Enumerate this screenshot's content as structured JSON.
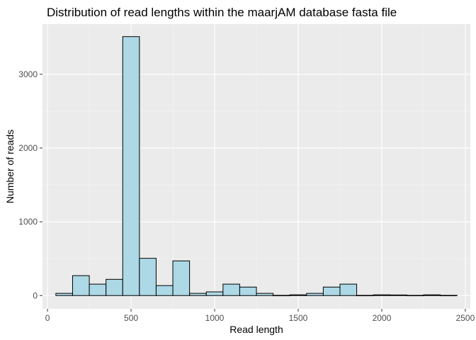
{
  "chart_data": {
    "type": "bar",
    "title": "Distribution of read lengths within the maarjAM database fasta file",
    "xlabel": "Read length",
    "ylabel": "Number of reads",
    "bin_width": 100,
    "bin_start": 50,
    "x": [
      100,
      200,
      300,
      400,
      500,
      600,
      700,
      800,
      900,
      1000,
      1100,
      1200,
      1300,
      1400,
      1500,
      1600,
      1700,
      1800,
      1900,
      2000,
      2100,
      2200,
      2300,
      2400
    ],
    "values": [
      30,
      270,
      155,
      220,
      3510,
      505,
      135,
      470,
      30,
      50,
      155,
      115,
      30,
      3,
      10,
      30,
      115,
      155,
      3,
      10,
      8,
      3,
      10,
      3
    ],
    "xlim": [
      -30,
      2530
    ],
    "ylim": [
      -180,
      3680
    ],
    "x_ticks": [
      0,
      500,
      1000,
      1500,
      2000,
      2500
    ],
    "y_ticks": [
      0,
      1000,
      2000,
      3000
    ],
    "grid": true,
    "colors": {
      "bar_fill": "#add8e6",
      "bar_stroke": "#000000",
      "panel_bg": "#ebebeb",
      "grid_major": "#ffffff",
      "grid_minor": "#f5f5f5"
    }
  }
}
